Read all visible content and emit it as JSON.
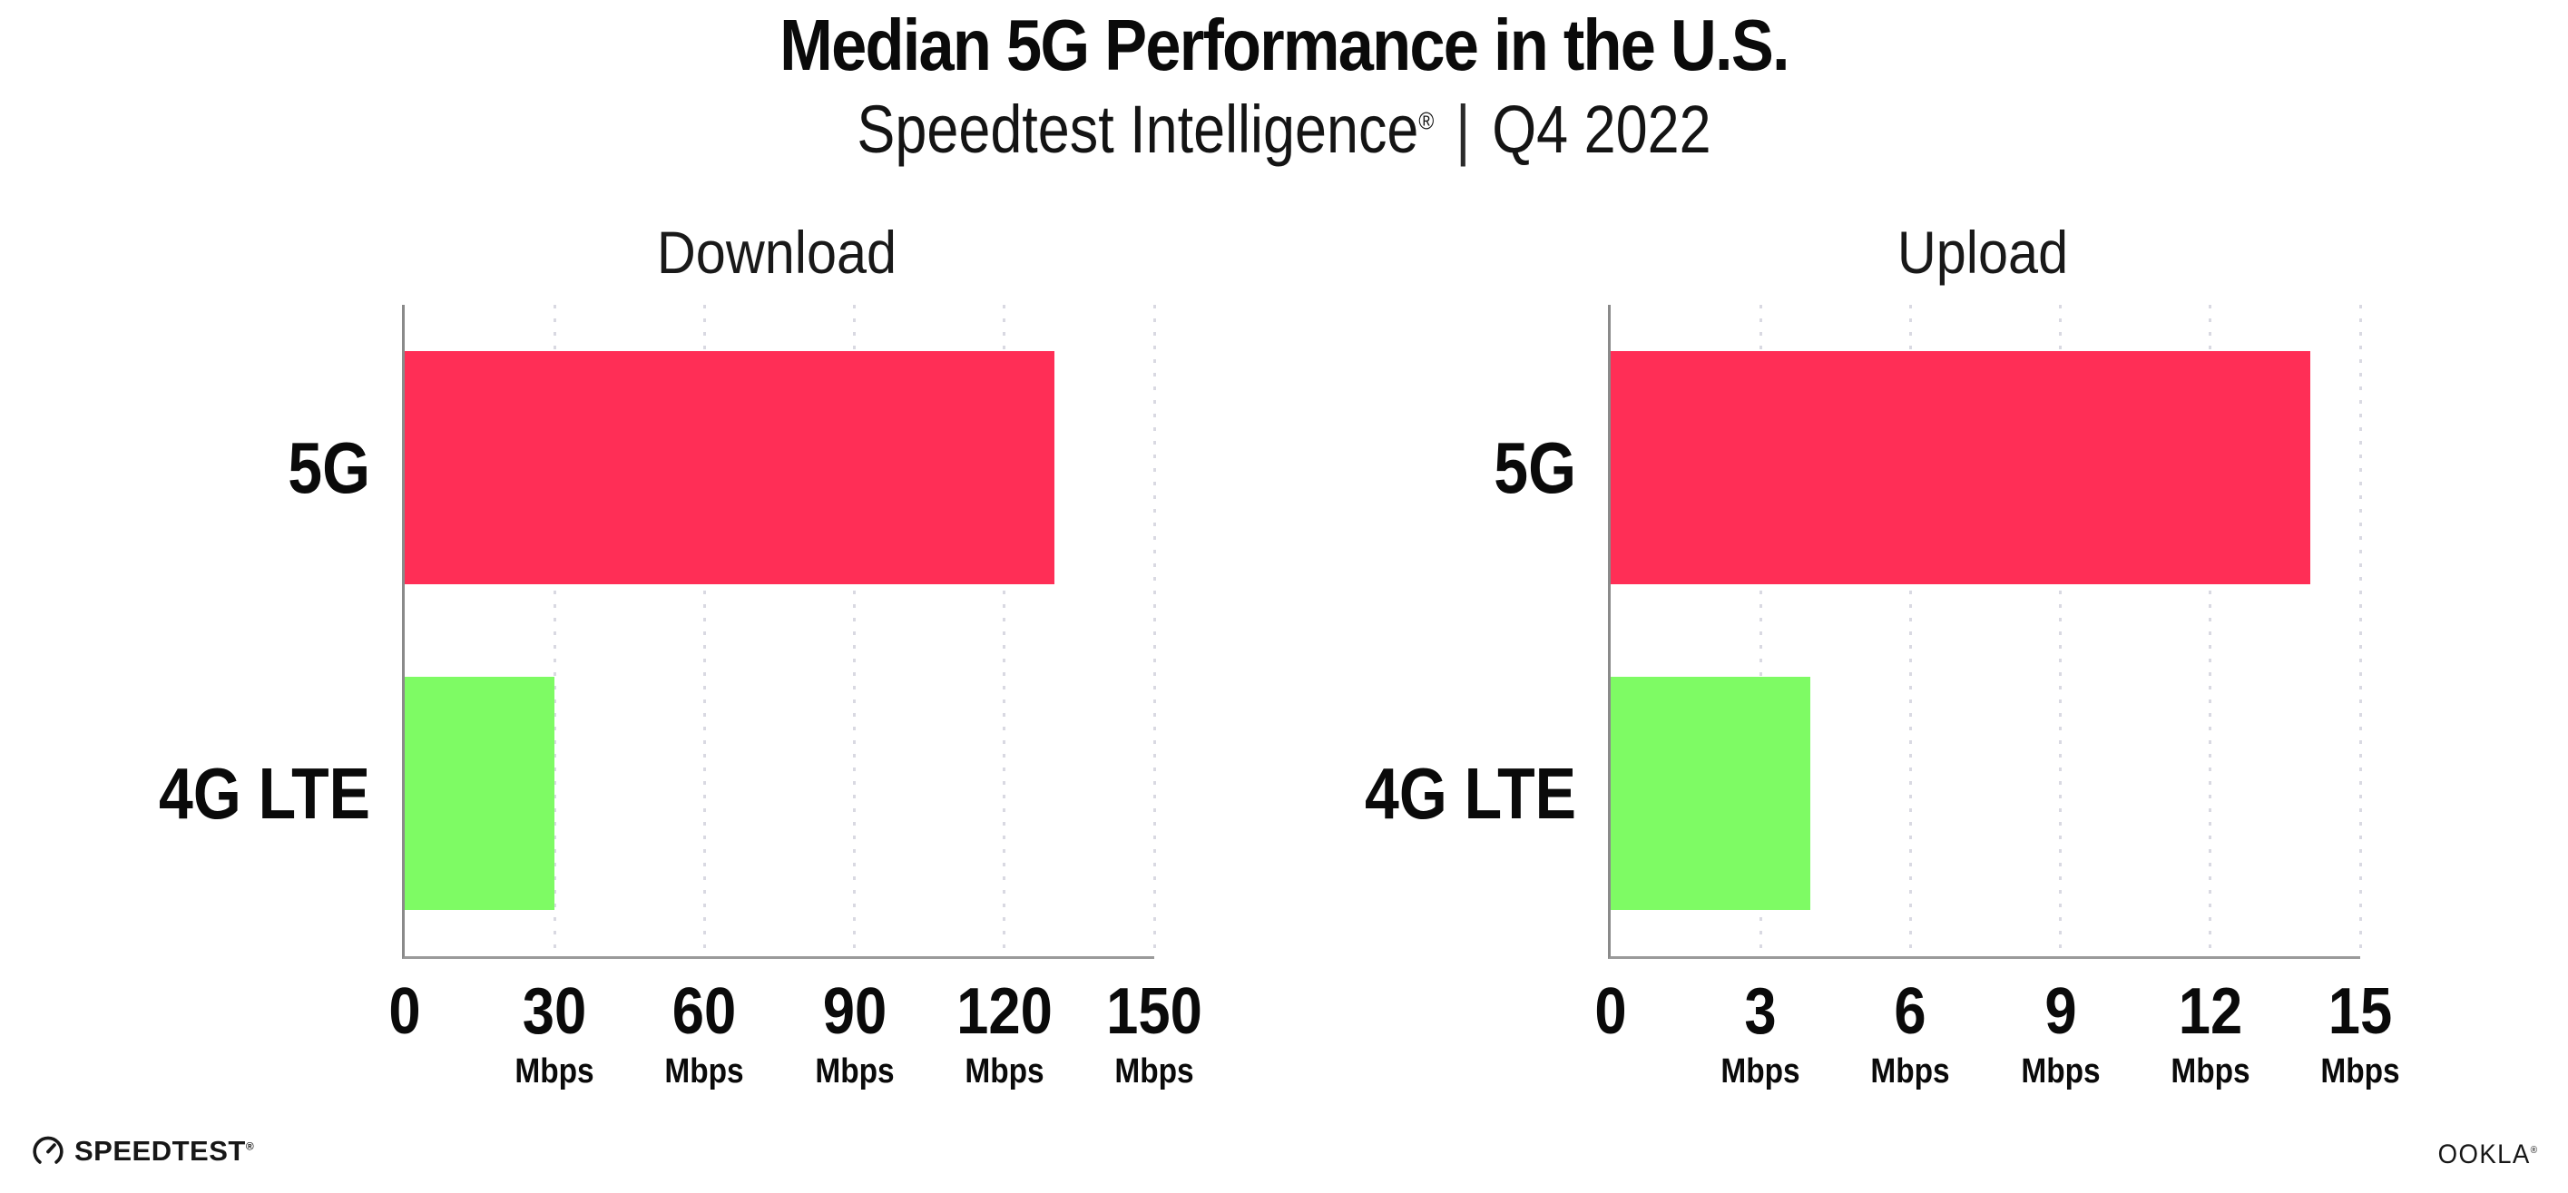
{
  "header": {
    "title": "Median 5G Performance in the U.S.",
    "subtitle_brand": "Speedtest Intelligence",
    "subtitle_reg": "®",
    "subtitle_separator": "|",
    "subtitle_period": "Q4 2022"
  },
  "colors": {
    "bar_5g_pink": "#FF2E56",
    "bar_4g_lte_green": "#7EFB64",
    "gridline": "#D9D9E2",
    "axis": "#8A8A8A",
    "text": "#0A0A0A",
    "background": "#FFFFFF"
  },
  "chart_data": [
    {
      "type": "bar",
      "orientation": "horizontal",
      "title": "Download",
      "categories": [
        "5G",
        "4G LTE"
      ],
      "values": [
        130,
        30
      ],
      "unit": "Mbps",
      "xlim": [
        0,
        150
      ],
      "xticks": [
        0,
        30,
        60,
        90,
        120,
        150
      ],
      "grid": "vertical-dotted",
      "legend": "none",
      "series_colors": [
        "#FF2E56",
        "#7EFB64"
      ]
    },
    {
      "type": "bar",
      "orientation": "horizontal",
      "title": "Upload",
      "categories": [
        "5G",
        "4G LTE"
      ],
      "values": [
        14,
        4
      ],
      "unit": "Mbps",
      "xlim": [
        0,
        15
      ],
      "xticks": [
        0,
        3,
        6,
        9,
        12,
        15
      ],
      "grid": "vertical-dotted",
      "legend": "none",
      "series_colors": [
        "#FF2E56",
        "#7EFB64"
      ]
    }
  ],
  "footer": {
    "speedtest_label": "SPEEDTEST",
    "speedtest_reg": "®",
    "ookla_label": "OOKLA",
    "ookla_reg": "®"
  }
}
